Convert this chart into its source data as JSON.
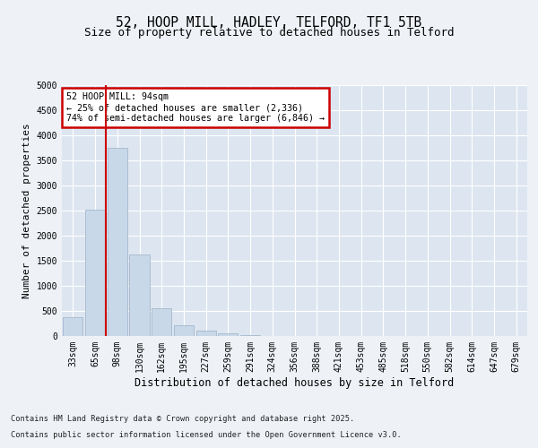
{
  "title1": "52, HOOP MILL, HADLEY, TELFORD, TF1 5TB",
  "title2": "Size of property relative to detached houses in Telford",
  "xlabel": "Distribution of detached houses by size in Telford",
  "ylabel": "Number of detached properties",
  "categories": [
    "33sqm",
    "65sqm",
    "98sqm",
    "130sqm",
    "162sqm",
    "195sqm",
    "227sqm",
    "259sqm",
    "291sqm",
    "324sqm",
    "356sqm",
    "388sqm",
    "421sqm",
    "453sqm",
    "485sqm",
    "518sqm",
    "550sqm",
    "582sqm",
    "614sqm",
    "647sqm",
    "679sqm"
  ],
  "values": [
    380,
    2520,
    3750,
    1620,
    560,
    220,
    100,
    55,
    10,
    0,
    0,
    0,
    0,
    0,
    0,
    0,
    0,
    0,
    0,
    0,
    0
  ],
  "bar_color": "#c8d8e8",
  "bar_edge_color": "#9ab0c8",
  "subject_line_color": "#cc0000",
  "subject_line_index": 1.5,
  "ylim": [
    0,
    5000
  ],
  "yticks": [
    0,
    500,
    1000,
    1500,
    2000,
    2500,
    3000,
    3500,
    4000,
    4500,
    5000
  ],
  "annotation_text": "52 HOOP MILL: 94sqm\n← 25% of detached houses are smaller (2,336)\n74% of semi-detached houses are larger (6,846) →",
  "annotation_box_color": "#cc0000",
  "footer1": "Contains HM Land Registry data © Crown copyright and database right 2025.",
  "footer2": "Contains public sector information licensed under the Open Government Licence v3.0.",
  "bg_color": "#eef2f7",
  "plot_bg_color": "#dde6f0",
  "grid_color": "#ffffff",
  "title1_fontsize": 10.5,
  "title2_fontsize": 9,
  "tick_fontsize": 7,
  "ylabel_fontsize": 8,
  "xlabel_fontsize": 8.5,
  "footer_fontsize": 6.2
}
